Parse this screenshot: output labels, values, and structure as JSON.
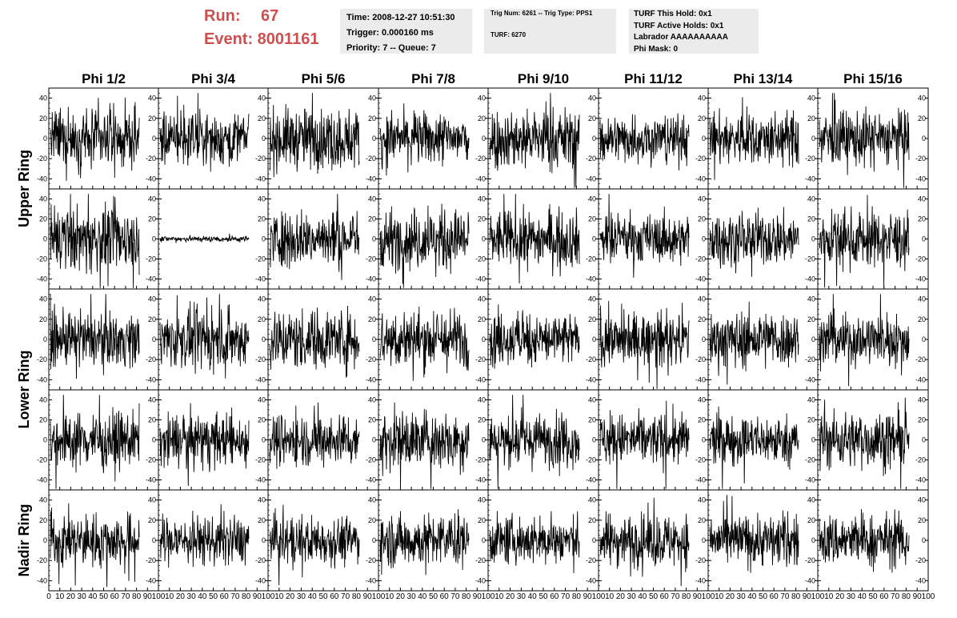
{
  "header": {
    "run_label": "Run:",
    "run_value": "67",
    "event_label": "Event: 8001161"
  },
  "info_boxes": {
    "time": [
      "Time: 2008-12-27 10:51:30",
      "Trigger: 0.000160 ms",
      "Priority: 7 -- Queue: 7"
    ],
    "trig": [
      "Trig Num: 6261 -- Trig Type: PPS1",
      "TURF: 6270"
    ],
    "turf": [
      "TURF This Hold: 0x1",
      "TURF Active Holds: 0x1",
      "Labrador AAAAAAAAAA",
      "Phi Mask: 0"
    ]
  },
  "columns": [
    "Phi 1/2",
    "Phi 3/4",
    "Phi 5/6",
    "Phi 7/8",
    "Phi 9/10",
    "Phi 11/12",
    "Phi 13/14",
    "Phi 15/16"
  ],
  "rings": [
    "Upper Ring",
    "Lower Ring",
    "Nadir Ring"
  ],
  "y_ticks": [
    "40",
    "20",
    "0",
    "-20",
    "-40"
  ],
  "x_ticks": [
    "0",
    "10",
    "20",
    "30",
    "40",
    "50",
    "60",
    "70",
    "80",
    "90",
    "100"
  ],
  "colors": {
    "accent": "#cc5050",
    "box_bg": "#ebebeb",
    "trace": "#000000"
  },
  "chart_data": {
    "type": "line",
    "rows": 5,
    "cols": 8,
    "xlim": [
      0,
      100
    ],
    "ylim": [
      -50,
      50
    ],
    "grid": false,
    "row_amplitude": [
      [
        14,
        13,
        15,
        13,
        15,
        12,
        13,
        14
      ],
      [
        16,
        1.5,
        14,
        15,
        14,
        12,
        13,
        14
      ],
      [
        13,
        14,
        15,
        15,
        13,
        13,
        14,
        13
      ],
      [
        14,
        13,
        13,
        15,
        13,
        13,
        12,
        14
      ],
      [
        13,
        12,
        12,
        13,
        12,
        13,
        13,
        13
      ]
    ],
    "samples_per_trace": 240
  }
}
